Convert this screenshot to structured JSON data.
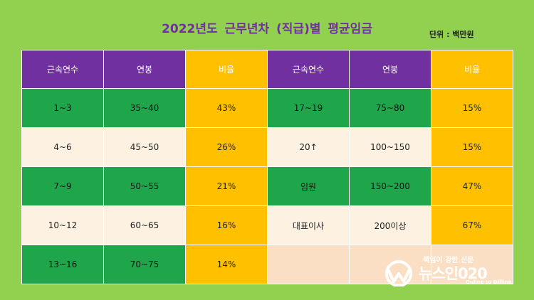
{
  "title": "2022년도  근무년차 (직급)별 평균임금",
  "unit": "단위 : 백만원",
  "table": {
    "headers": [
      "근속연수",
      "연봉",
      "비율",
      "근속연수",
      "연봉",
      "비율"
    ],
    "rows": [
      [
        "1~3",
        "35~40",
        "43%",
        "17~19",
        "75~80",
        "15%"
      ],
      [
        "4~6",
        "45~50",
        "26%",
        "20↑",
        "100~150",
        "15%"
      ],
      [
        "7~9",
        "50~55",
        "21%",
        "임원",
        "150~200",
        "47%"
      ],
      [
        "10~12",
        "60~65",
        "16%",
        "대표이사",
        "200이상",
        "67%"
      ],
      [
        "13~16",
        "70~75",
        "14%",
        "",
        "",
        ""
      ]
    ]
  },
  "watermark": {
    "tagline": "책임이 강한 신문",
    "name": "뉴스인020",
    "subtitle": "Online to Offline"
  },
  "colors": {
    "background": "#92d050",
    "header_purple": "#7030a0",
    "gold": "#ffc000",
    "green": "#1fa64a",
    "cream": "#fdf1e1",
    "peach": "#fbdfc4"
  }
}
